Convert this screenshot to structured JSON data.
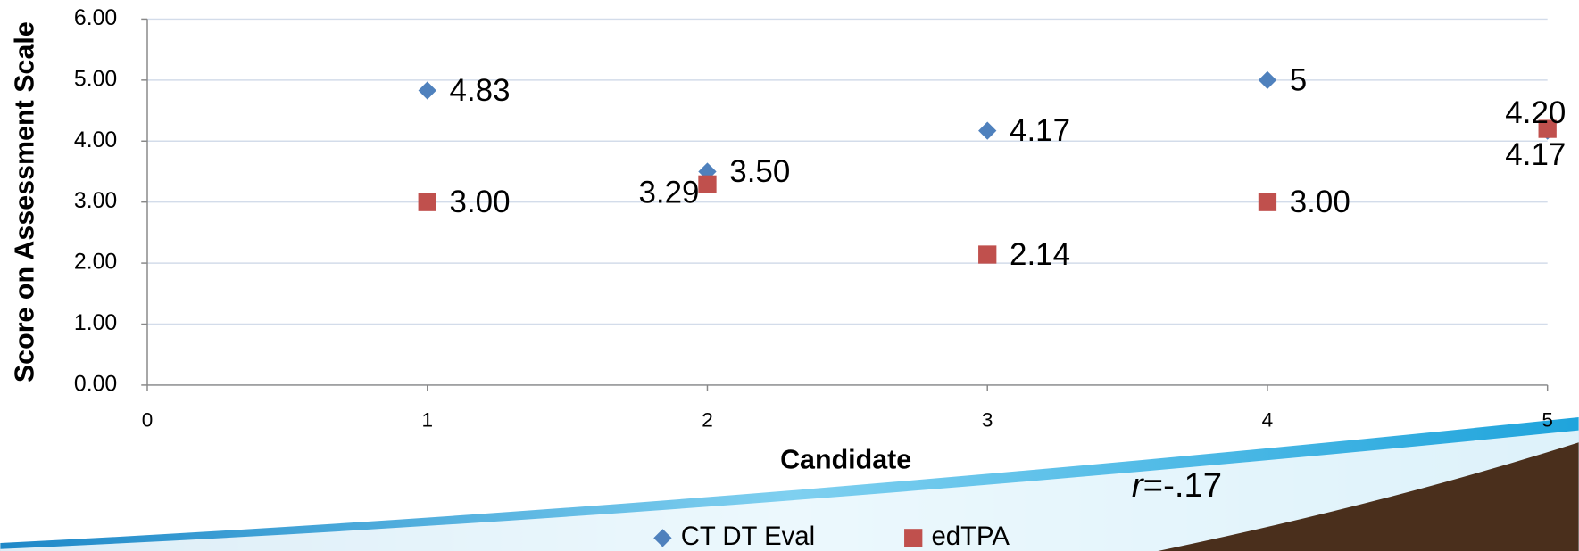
{
  "chart_data": {
    "type": "scatter",
    "x_label": "Candidate",
    "y_label": "Score on Assessment Scale",
    "annotation": [
      "r",
      "=-.17"
    ],
    "xlim": [
      0,
      5
    ],
    "ylim": [
      0,
      6
    ],
    "xticks": [
      0,
      1,
      2,
      3,
      4,
      5
    ],
    "yticks": [
      {
        "value": 0,
        "label": "0.00"
      },
      {
        "value": 1,
        "label": "1.00"
      },
      {
        "value": 2,
        "label": "2.00"
      },
      {
        "value": 3,
        "label": "3.00"
      },
      {
        "value": 4,
        "label": "4.00"
      },
      {
        "value": 5,
        "label": "5.00"
      },
      {
        "value": 6,
        "label": "6.00"
      }
    ],
    "grid": true,
    "legend": "bottom",
    "series": [
      {
        "name": "CT DT Eval",
        "color": "#4f81bd",
        "marker": "diamond",
        "x": [
          1,
          2,
          3,
          4,
          5
        ],
        "values": [
          4.83,
          3.5,
          4.17,
          5,
          4.17
        ],
        "value_labels": [
          "4.83",
          "3.50",
          "4.17",
          "5",
          "4.17"
        ]
      },
      {
        "name": "edTPA",
        "color": "#c0504d",
        "marker": "square",
        "x": [
          1,
          2,
          3,
          4,
          5
        ],
        "values": [
          3,
          3.29,
          2.14,
          3,
          4.2
        ],
        "value_labels": [
          "3.00",
          "3.29",
          "2.14",
          "3.00",
          "4.20"
        ]
      }
    ]
  }
}
